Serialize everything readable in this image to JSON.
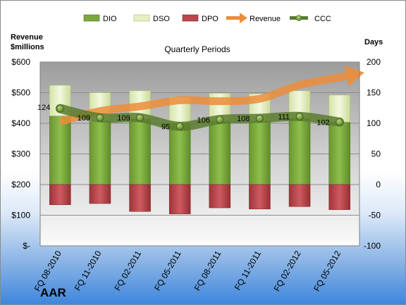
{
  "company": "AAR",
  "chart_data": {
    "type": "bar",
    "title": "Quarterly Periods",
    "y_left_label_line1": "Revenue",
    "y_left_label_line2": "$millions",
    "y_right_label": "Days",
    "categories": [
      "FQ 08-2010",
      "FQ 11-2010",
      "FQ 02-2011",
      "FQ 05-2011",
      "FQ 08-2011",
      "FQ 11-2011",
      "FQ 02-2012",
      "FQ 05-2012"
    ],
    "y_left_ticks": [
      "$-",
      "$100",
      "$200",
      "$300",
      "$400",
      "$500",
      "$600"
    ],
    "y_left_lim": [
      0,
      600
    ],
    "y_right_ticks": [
      "-100",
      "-50",
      "0",
      "50",
      "100",
      "150",
      "200"
    ],
    "y_right_lim": [
      -100,
      200
    ],
    "legend_position": "top",
    "series": [
      {
        "name": "DIO",
        "axis": "right",
        "values": [
          112,
          104,
          107,
          100,
          104,
          104,
          108,
          102
        ],
        "color": "#7aa83d"
      },
      {
        "name": "DSO",
        "axis": "right",
        "values": [
          50,
          46,
          46,
          43,
          45,
          44,
          45,
          44
        ],
        "color": "#e4efc2"
      },
      {
        "name": "DPO",
        "axis": "right",
        "values": [
          -33,
          -31,
          -44,
          -48,
          -38,
          -40,
          -36,
          -41
        ],
        "color": "#b8474c"
      },
      {
        "name": "Revenue",
        "axis": "left",
        "values": [
          405,
          440,
          455,
          475,
          472,
          480,
          525,
          550
        ],
        "color": "#ec8d3b"
      },
      {
        "name": "CCC",
        "axis": "right",
        "values": [
          124,
          109,
          109,
          95,
          106,
          108,
          111,
          102
        ],
        "color": "#5b7b2e"
      }
    ]
  }
}
